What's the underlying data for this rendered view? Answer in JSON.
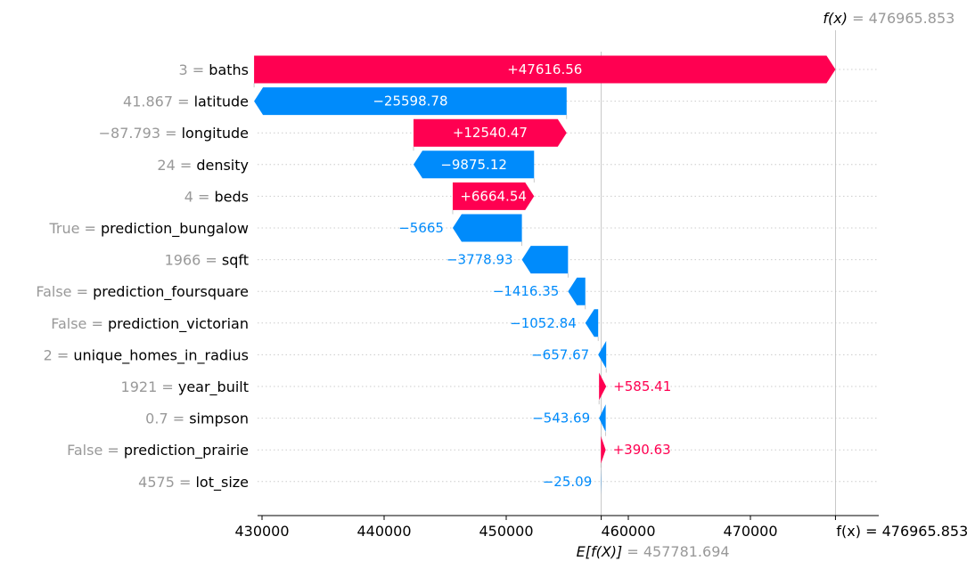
{
  "chart_data": {
    "type": "waterfall",
    "base_value": {
      "prefix": "E[f(X)]",
      "value_text": "457781.694",
      "value": 457781.694
    },
    "output_value": {
      "prefix": "f(x)",
      "value_text": "476965.853",
      "value": 476965.853
    },
    "x_tick_values": [
      430000,
      440000,
      450000,
      460000,
      470000
    ],
    "x_tick_labels": [
      "430000",
      "440000",
      "450000",
      "460000",
      "470000"
    ],
    "overlap_label": "f(x) = 476965.853",
    "xlim": [
      429000,
      480000
    ],
    "features": [
      {
        "value": "3",
        "name": "baths",
        "shap": 47616.56,
        "label": "+47616.56"
      },
      {
        "value": "41.867",
        "name": "latitude",
        "shap": -25598.78,
        "label": "−25598.78"
      },
      {
        "value": "−87.793",
        "name": "longitude",
        "shap": 12540.47,
        "label": "+12540.47"
      },
      {
        "value": "24",
        "name": "density",
        "shap": -9875.12,
        "label": "−9875.12"
      },
      {
        "value": "4",
        "name": "beds",
        "shap": 6664.54,
        "label": "+6664.54"
      },
      {
        "value": "True",
        "name": "prediction_bungalow",
        "shap": -5665,
        "label": "−5665"
      },
      {
        "value": "1966",
        "name": "sqft",
        "shap": -3778.93,
        "label": "−3778.93"
      },
      {
        "value": "False",
        "name": "prediction_foursquare",
        "shap": -1416.35,
        "label": "−1416.35"
      },
      {
        "value": "False",
        "name": "prediction_victorian",
        "shap": -1052.84,
        "label": "−1052.84"
      },
      {
        "value": "2",
        "name": "unique_homes_in_radius",
        "shap": -657.67,
        "label": "−657.67"
      },
      {
        "value": "1921",
        "name": "year_built",
        "shap": 585.41,
        "label": "+585.41"
      },
      {
        "value": "0.7",
        "name": "simpson",
        "shap": -543.69,
        "label": "−543.69"
      },
      {
        "value": "False",
        "name": "prediction_prairie",
        "shap": 390.63,
        "label": "+390.63"
      },
      {
        "value": "4575",
        "name": "lot_size",
        "shap": -25.09,
        "label": "−25.09"
      }
    ],
    "colors": {
      "positive": "#ff0051",
      "negative": "#008bfb",
      "muted": "#999999",
      "grid": "#cccccc"
    }
  }
}
